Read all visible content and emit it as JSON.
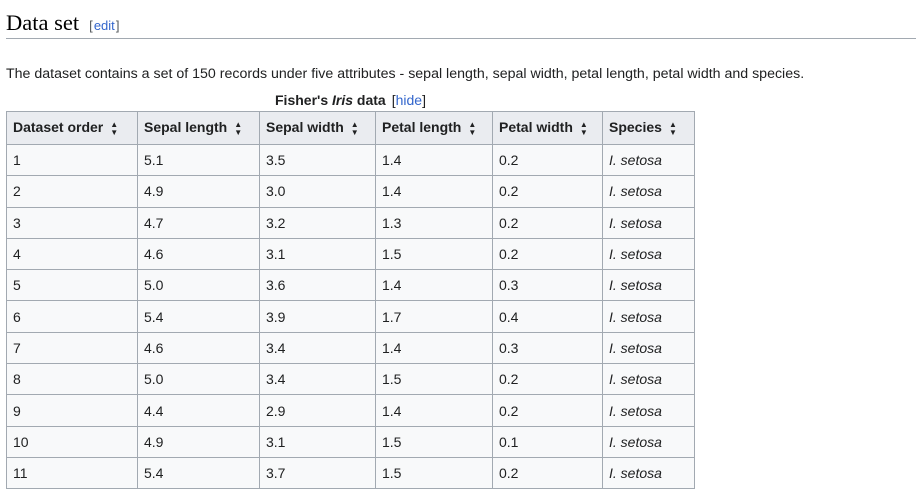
{
  "section": {
    "title": "Data set",
    "edit_open": "[",
    "edit_label": "edit",
    "edit_close": "]"
  },
  "intro": "The dataset contains a set of 150 records under five attributes - sepal length, sepal width, petal length, petal width and species.",
  "table": {
    "caption_prefix": "Fisher's ",
    "caption_genus": "Iris",
    "caption_suffix": " data",
    "hide_open": "[",
    "hide_label": "hide",
    "hide_close": "]",
    "sort_icon": "sort-updown-icon",
    "columns": [
      "Dataset order",
      "Sepal length",
      "Sepal width",
      "Petal length",
      "Petal width",
      "Species"
    ],
    "rows": [
      [
        "1",
        "5.1",
        "3.5",
        "1.4",
        "0.2",
        "I. setosa"
      ],
      [
        "2",
        "4.9",
        "3.0",
        "1.4",
        "0.2",
        "I. setosa"
      ],
      [
        "3",
        "4.7",
        "3.2",
        "1.3",
        "0.2",
        "I. setosa"
      ],
      [
        "4",
        "4.6",
        "3.1",
        "1.5",
        "0.2",
        "I. setosa"
      ],
      [
        "5",
        "5.0",
        "3.6",
        "1.4",
        "0.3",
        "I. setosa"
      ],
      [
        "6",
        "5.4",
        "3.9",
        "1.7",
        "0.4",
        "I. setosa"
      ],
      [
        "7",
        "4.6",
        "3.4",
        "1.4",
        "0.3",
        "I. setosa"
      ],
      [
        "8",
        "5.0",
        "3.4",
        "1.5",
        "0.2",
        "I. setosa"
      ],
      [
        "9",
        "4.4",
        "2.9",
        "1.4",
        "0.2",
        "I. setosa"
      ],
      [
        "10",
        "4.9",
        "3.1",
        "1.5",
        "0.1",
        "I. setosa"
      ],
      [
        "11",
        "5.4",
        "3.7",
        "1.5",
        "0.2",
        "I. setosa"
      ]
    ]
  },
  "colors": {
    "link": "#3366cc",
    "header_bg": "#eaecf0",
    "cell_bg": "#f8f9fa",
    "border": "#a2a9b1",
    "text": "#202122"
  }
}
